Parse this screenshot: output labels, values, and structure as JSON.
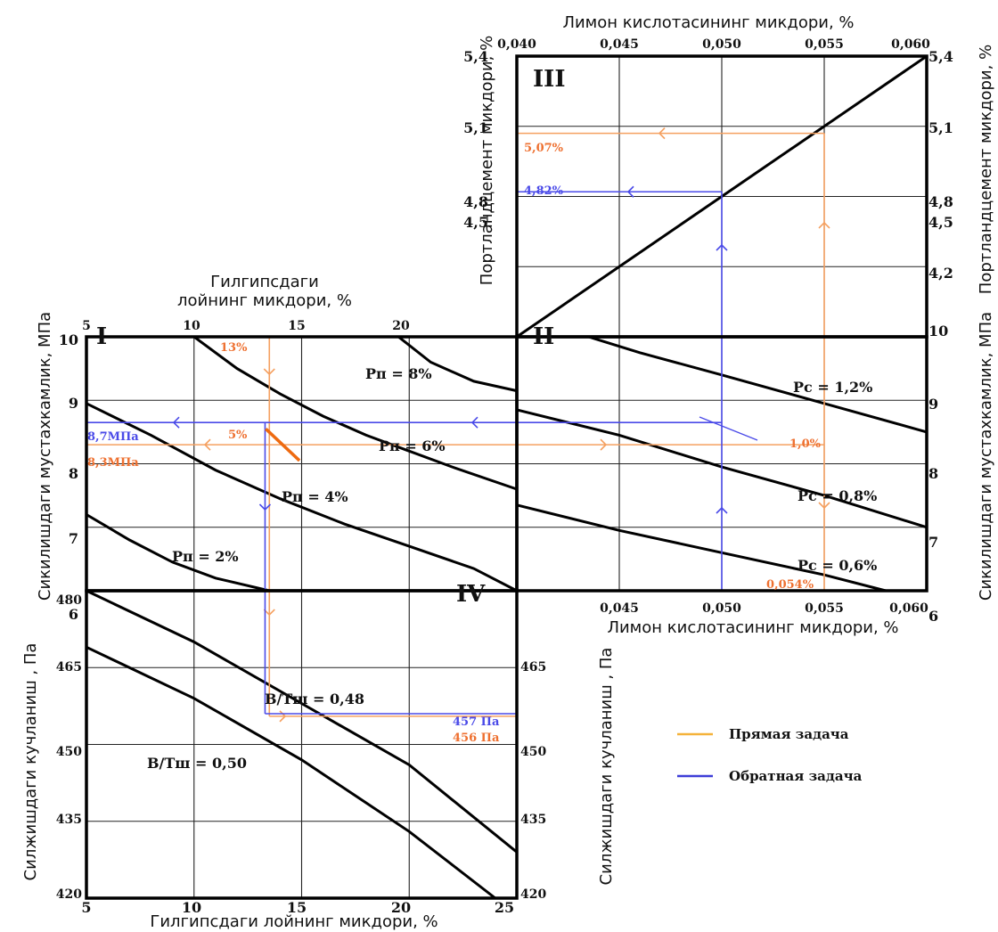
{
  "chart_data": {
    "type": "line",
    "title": "",
    "colors": {
      "direct": "#f5a060",
      "direct_text": "#ee7030",
      "inverse": "#4a4ae8",
      "legend_direct": "#f4b23a",
      "legend_inverse": "#3d3dd8",
      "highlight": "#ee6a10"
    },
    "axes": {
      "citric_top": {
        "label": "Лимон кислотасининг микдори, %",
        "ticks": [
          "0,040",
          "0,045",
          "0,050",
          "0,055",
          "0,060"
        ],
        "range": [
          0.04,
          0.06
        ]
      },
      "citric_mid": {
        "label": "Лимон кислотасининг микдори, %",
        "ticks": [
          "0,045",
          "0,050",
          "0,055",
          "0,060"
        ]
      },
      "portland_left": {
        "label": "Портландцемент микдори, %",
        "ticks": [
          "5,4",
          "5,1",
          "4,8",
          "4,5"
        ],
        "range": [
          4.2,
          5.4
        ]
      },
      "portland_right": {
        "label": "Портландцемент микдори, %",
        "ticks": [
          "5,4",
          "5,1",
          "4,8",
          "4,5",
          "4,2"
        ]
      },
      "clay_top": {
        "label_line1": "Гилгипсдаги",
        "label_line2": "лойнинг микдори, %",
        "ticks": [
          "5",
          "10",
          "15",
          "20"
        ],
        "range": [
          5,
          25
        ]
      },
      "clay_bottom": {
        "label": "Гилгипсдаги лойнинг микдори, %",
        "ticks": [
          "5",
          "10",
          "15",
          "20",
          "25"
        ]
      },
      "strength_left": {
        "label": "Сикилишдаги мустахкамлик, МПа",
        "ticks": [
          "10",
          "9",
          "8",
          "7",
          "6"
        ],
        "range": [
          6,
          10
        ]
      },
      "strength_right": {
        "label": "Сикилишдаги мустахкамлик, МПа",
        "ticks": [
          "10",
          "9",
          "8",
          "7",
          "6"
        ]
      },
      "adhesion_left": {
        "label": "Силжишдаги кучланиш , Па",
        "ticks": [
          "480",
          "465",
          "450",
          "435",
          "420"
        ],
        "range": [
          420,
          480
        ]
      },
      "adhesion_right": {
        "label": "Силжишдаги кучланиш , Па",
        "ticks": [
          "465",
          "450",
          "435",
          "420"
        ]
      }
    },
    "quadrants": [
      {
        "id": "III",
        "x_axis": "citric %",
        "y_axis": "portland %",
        "series": [
          {
            "x": [
              0.04,
              0.06
            ],
            "y": [
              4.2,
              5.4
            ]
          }
        ]
      },
      {
        "id": "I",
        "x_axis": "clay %",
        "y_axis": "strength MPa",
        "series": [
          {
            "name": "Pп = 8%",
            "x": [
              19.5,
              21,
              23,
              25
            ],
            "y": [
              10.0,
              9.6,
              9.3,
              9.15
            ]
          },
          {
            "name": "Pп = 6%",
            "x": [
              10,
              12,
              14,
              16,
              18,
              20,
              22,
              25
            ],
            "y": [
              10.0,
              9.5,
              9.1,
              8.75,
              8.45,
              8.2,
              7.95,
              7.6
            ]
          },
          {
            "name": "Pп = 4%",
            "x": [
              5,
              8,
              11,
              14,
              17,
              20,
              23,
              25
            ],
            "y": [
              8.95,
              8.45,
              7.9,
              7.45,
              7.05,
              6.7,
              6.35,
              6.0
            ]
          },
          {
            "name": "Pп = 2%",
            "x": [
              5,
              7,
              9,
              11,
              13.5
            ],
            "y": [
              7.2,
              6.8,
              6.45,
              6.2,
              6.0
            ]
          }
        ]
      },
      {
        "id": "II",
        "x_axis": "citric %",
        "y_axis": "strength MPa",
        "series": [
          {
            "name": "Pc = 1,2%",
            "x": [
              0.0435,
              0.046,
              0.05,
              0.055,
              0.06
            ],
            "y": [
              10.0,
              9.75,
              9.4,
              8.95,
              8.5
            ]
          },
          {
            "name": "Pc = 0,8%",
            "x": [
              0.04,
              0.045,
              0.05,
              0.055,
              0.06
            ],
            "y": [
              8.85,
              8.45,
              7.95,
              7.5,
              7.0
            ]
          },
          {
            "name": "Pc = 0,6%",
            "x": [
              0.04,
              0.045,
              0.05,
              0.055,
              0.058
            ],
            "y": [
              7.35,
              6.95,
              6.6,
              6.25,
              6.0
            ]
          }
        ],
        "annotations": [
          "1,0%",
          "0,054%"
        ]
      },
      {
        "id": "IV",
        "x_axis": "clay %",
        "y_axis": "adhesion Pa",
        "series": [
          {
            "name": "В/Тш = 0,48",
            "x": [
              5,
              10,
              15,
              20,
              25
            ],
            "y": [
              480,
              470,
              458,
              446,
              429
            ]
          },
          {
            "name": "В/Тш = 0,50",
            "x": [
              5,
              10,
              15,
              20,
              24
            ],
            "y": [
              469,
              459,
              447,
              433,
              420
            ]
          }
        ]
      }
    ],
    "annotations": {
      "portland_direct": "5,07%",
      "portland_inverse": "4,82%",
      "clay_direct": "13%",
      "clay_marker": "5%",
      "strength_inverse": "8,7МПа",
      "strength_direct": "8,3МПа",
      "adhesion_inverse": "457 Па",
      "adhesion_direct": "456 Па"
    },
    "legend": [
      {
        "name": "Прямая задача",
        "color": "#f4b23a"
      },
      {
        "name": "Обратная задача",
        "color": "#3d3dd8"
      }
    ]
  }
}
